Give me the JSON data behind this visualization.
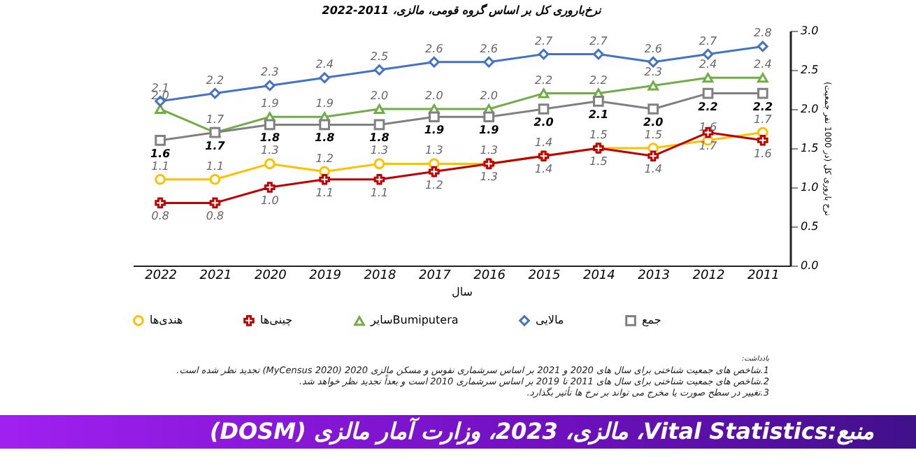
{
  "chart_data": {
    "type": "line",
    "title": "نرخ‌باروری کل بر اساس گروه قومی، مالزی، 2011-2022",
    "xlabel": "سال",
    "ylabel": "نرخ باروری کل (در 1000 نفر جمعیت)",
    "categories": [
      "2022",
      "2021",
      "2020",
      "2019",
      "2018",
      "2017",
      "2016",
      "2015",
      "2014",
      "2013",
      "2012",
      "2011"
    ],
    "series": [
      {
        "name": "هندی‌ها",
        "color": "#ffc000",
        "marker": "circle",
        "values": [
          1.1,
          1.1,
          1.3,
          1.2,
          1.3,
          1.3,
          1.3,
          1.4,
          1.5,
          1.5,
          1.6,
          1.7
        ],
        "value_labels": [
          "1.1",
          "1.1",
          "1.3",
          "1.2",
          "1.3",
          "1.3",
          "1.3",
          "1.4",
          "1.5",
          "1.5",
          "1.6",
          "1.7"
        ]
      },
      {
        "name": "چینی‌ها",
        "color": "#c00000",
        "marker": "cross",
        "values": [
          0.8,
          0.8,
          1.0,
          1.1,
          1.1,
          1.2,
          1.3,
          1.4,
          1.5,
          1.4,
          1.7,
          1.6
        ],
        "value_labels": [
          "0.8",
          "0.8",
          "1.0",
          "1.1",
          "1.1",
          "1.2",
          "1.3",
          "1.4",
          "1.5",
          "1.4",
          "1.7",
          "1.6"
        ]
      },
      {
        "name": "سایرBumiputera",
        "color": "#70ad47",
        "marker": "triangle",
        "values": [
          2.0,
          1.7,
          1.9,
          1.9,
          2.0,
          2.0,
          2.0,
          2.2,
          2.2,
          2.3,
          2.4,
          2.4
        ],
        "value_labels": [
          "2.0",
          "1.7",
          "1.9",
          "1.9",
          "2.0",
          "2.0",
          "2.0",
          "2.2",
          "2.2",
          "2.3",
          "2.4",
          "2.4"
        ]
      },
      {
        "name": "مالایی",
        "color": "#4472c4",
        "marker": "diamond",
        "values": [
          2.1,
          2.2,
          2.3,
          2.4,
          2.5,
          2.6,
          2.6,
          2.7,
          2.7,
          2.6,
          2.7,
          2.8
        ],
        "value_labels": [
          "2.1",
          "2.2",
          "2.3",
          "2.4",
          "2.5",
          "2.6",
          "2.6",
          "2.7",
          "2.7",
          "2.6",
          "2.7",
          "2.8"
        ]
      },
      {
        "name": "جمع",
        "color": "#808080",
        "marker": "square",
        "values": [
          1.6,
          1.7,
          1.8,
          1.8,
          1.8,
          1.9,
          1.9,
          2.0,
          2.1,
          2.0,
          2.2,
          2.2
        ],
        "value_labels": [
          "1.6",
          "1.7",
          "1.8",
          "1.8",
          "1.8",
          "1.9",
          "1.9",
          "2.0",
          "2.1",
          "2.0",
          "2.2",
          "2.2"
        ]
      }
    ],
    "ylim": [
      0,
      3
    ],
    "yticks": [
      {
        "value": 0,
        "label": "0.0"
      },
      {
        "value": 0.5,
        "label": "0.5"
      },
      {
        "value": 1,
        "label": "1.0"
      },
      {
        "value": 1.5,
        "label": "1.5"
      },
      {
        "value": 2,
        "label": "2.0"
      },
      {
        "value": 2.5,
        "label": "2.5"
      },
      {
        "value": 3,
        "label": "3.0"
      }
    ],
    "grid": false,
    "legend": "bottom",
    "line_style": "solid",
    "annotations": [
      "یادداشت:",
      "1.شاخص های جمعیت شناختی برای سال های 2020 و 2021 بر اساس سرشماری نفوس و مسکن مالزی 2020 (MyCensus 2020) تجدید نظر شده است.",
      "2.شاخص های جمعیت شناختی برای سال های 2011 تا 2019 بر اساس سرشماری 2010 است و بعداً تجدید نظر خواهد شد.",
      "3.تغییر در سطح صورت یا مخرج می تواند بر نرخ ها تأثیر بگذارد.",
      "منبع:Vital Statistics، مالزی، 2023، وزارت آمار مالزی (DOSM)"
    ]
  }
}
